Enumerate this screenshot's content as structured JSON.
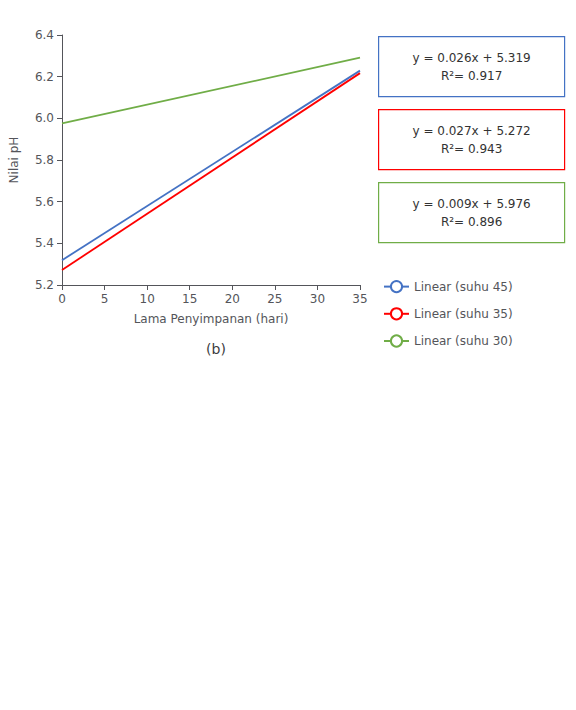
{
  "chart_data": {
    "type": "line",
    "title": "(b)",
    "xlabel": "Lama Penyimpanan (hari)",
    "ylabel": "Nilai pH",
    "xlim": [
      0,
      35
    ],
    "ylim": [
      5.2,
      6.4
    ],
    "xticks": [
      0,
      5,
      10,
      15,
      20,
      25,
      30,
      35
    ],
    "yticks": [
      5.2,
      5.4,
      5.6,
      5.8,
      {
        "value": 6.0,
        "label": "6.0"
      },
      6.2,
      6.4
    ],
    "grid": false,
    "legend": "right",
    "x": [
      0,
      35
    ],
    "series": [
      {
        "name": "Linear (suhu 45)",
        "color": "#4472C4",
        "values": [
          5.319,
          6.229
        ]
      },
      {
        "name": "Linear (suhu 35)",
        "color": "#FF0000",
        "values": [
          5.272,
          6.217
        ]
      },
      {
        "name": "Linear (suhu 30)",
        "color": "#70AD47",
        "values": [
          5.976,
          6.291
        ]
      }
    ],
    "annotations": [
      {
        "text": [
          "y = 0.026x + 5.319",
          "R²= 0.917"
        ],
        "color": "#4472C4"
      },
      {
        "text": [
          "y = 0.027x + 5.272",
          "R²= 0.943"
        ],
        "color": "#FF0000"
      },
      {
        "text": [
          "y = 0.009x + 5.976",
          "R²= 0.896"
        ],
        "color": "#70AD47"
      }
    ]
  }
}
